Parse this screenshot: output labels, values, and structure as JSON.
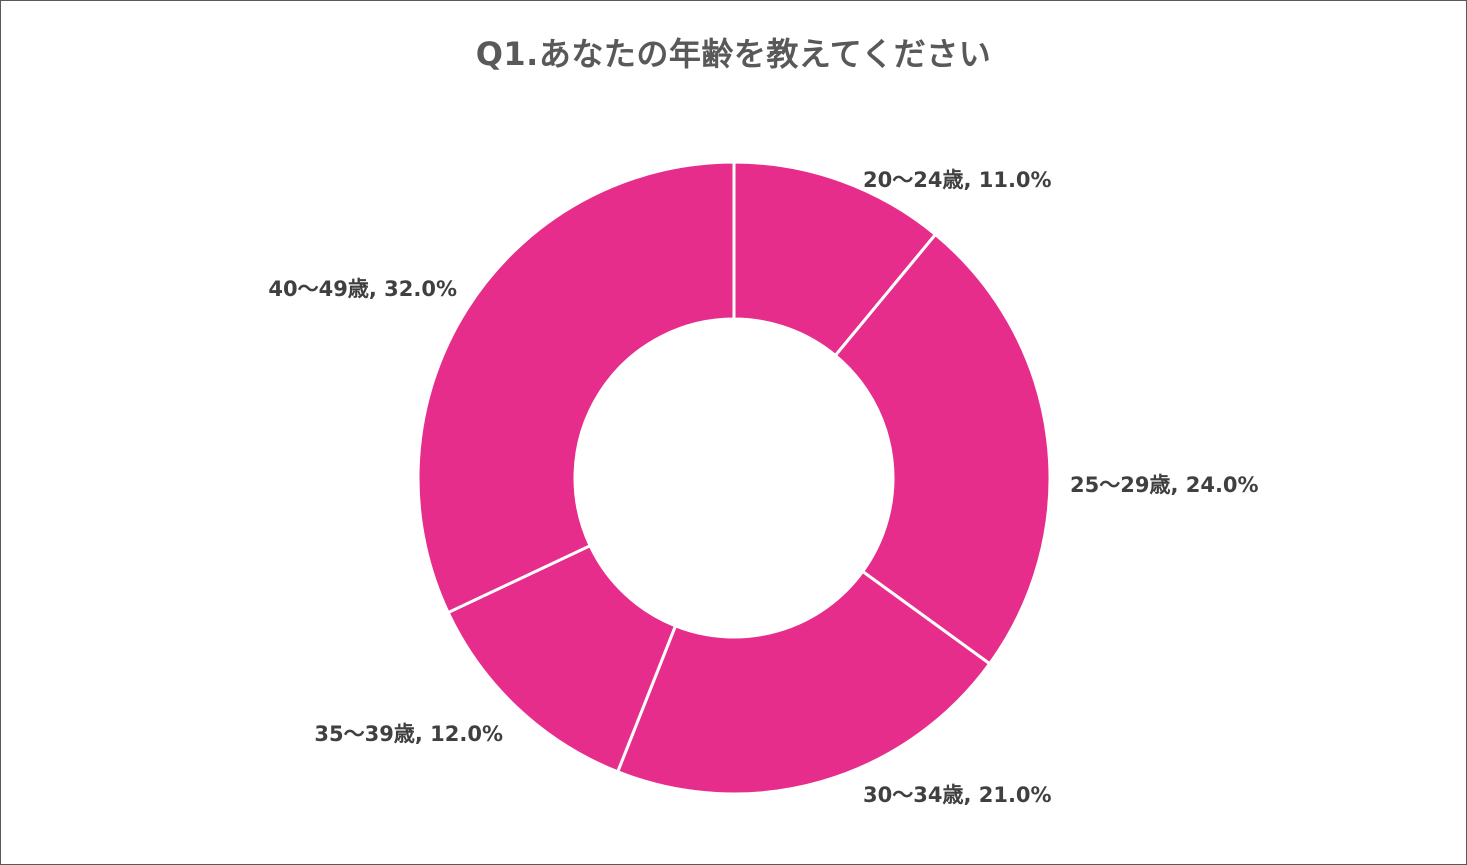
{
  "chart_data": {
    "type": "pie",
    "title": "Q1.あなたの年齢を教えてください",
    "categories": [
      "20～24歳",
      "25～29歳",
      "30～34歳",
      "35～39歳",
      "40～49歳"
    ],
    "values": [
      11.0,
      24.0,
      21.0,
      12.0,
      32.0
    ],
    "labels": [
      "20～24歳, 11.0%",
      "25～29歳, 24.0%",
      "30～34歳, 21.0%",
      "35～39歳, 12.0%",
      "40～49歳, 32.0%"
    ],
    "unit": "%",
    "legend": "none",
    "donut": true,
    "color": "#E72D8B",
    "separator_color": "#FFFFFF"
  }
}
